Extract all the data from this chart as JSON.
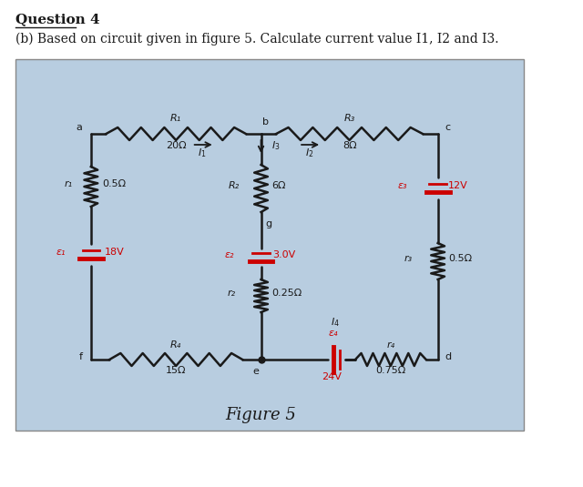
{
  "title": "Question 4",
  "subtitle": "(b) Based on circuit given in figure 5. Calculate current value I1, I2 and I3.",
  "figure_label": "Figure 5",
  "bg_color": "#b8cde0",
  "text_color": "#1a1a1a",
  "wire_color": "#1a1a1a",
  "battery_color": "#cc0000",
  "components": {
    "R1_label": "R₁",
    "R1_val": "20Ω",
    "R2_label": "R₂",
    "R2_val": "6Ω",
    "R3_label": "R₃",
    "R3_val": "8Ω",
    "R4_label": "R₄",
    "R4_val": "15Ω",
    "r1_label": "r₁",
    "r1_val": "0.5Ω",
    "r2_label": "r₂",
    "r2_val": "0.25Ω",
    "r3_label": "r₃",
    "r3_val": "0.5Ω",
    "r4_label": "r₄",
    "r4_val": "0.75Ω",
    "E1_label": "ε₁",
    "E1_val": "18V",
    "E2_label": "ε₂",
    "E2_val": "3.0V",
    "E3_label": "ε₃",
    "E3_val": "12V",
    "E4_label": "ε₄",
    "E4_val": "24V"
  }
}
